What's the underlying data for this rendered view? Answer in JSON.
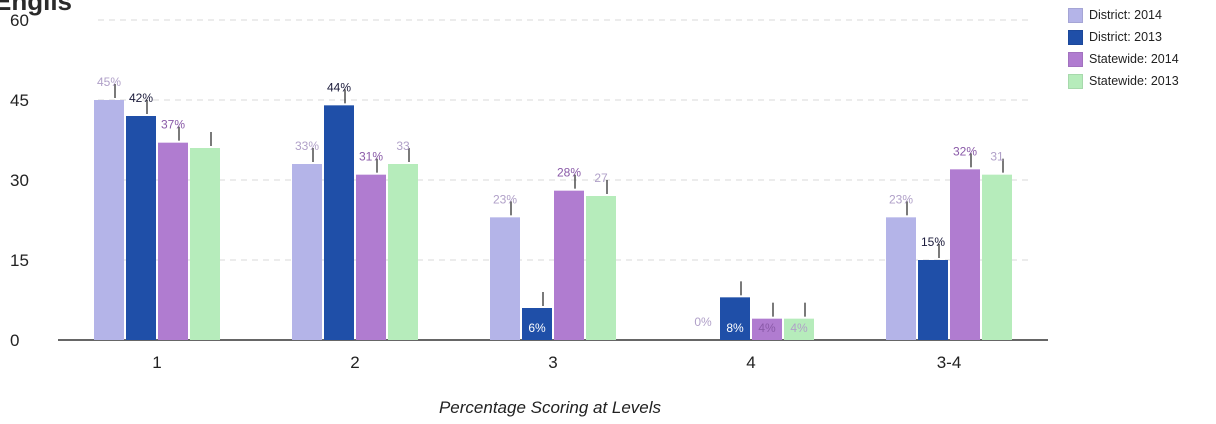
{
  "chart_data": {
    "type": "bar",
    "title": "Englis",
    "xlabel": "Percentage Scoring at Levels",
    "ylabel": "",
    "ylim": [
      0,
      60
    ],
    "yticks": [
      0,
      15,
      30,
      45,
      60
    ],
    "grid": true,
    "legend_position": "top-right",
    "categories": [
      "1",
      "2",
      "3",
      "4",
      "3-4"
    ],
    "series": [
      {
        "name": "District: 2014",
        "color": "#b4b4e8",
        "values": [
          45,
          33,
          23,
          0,
          23
        ],
        "labels": [
          "45%",
          "33%",
          "23%",
          "0%",
          "23%"
        ]
      },
      {
        "name": "District: 2013",
        "color": "#1f4fa8",
        "values": [
          42,
          44,
          6,
          8,
          15
        ],
        "labels": [
          "42%",
          "44%",
          "6%",
          "8%",
          "15%"
        ]
      },
      {
        "name": "Statewide: 2014",
        "color": "#b07cd0",
        "values": [
          37,
          31,
          28,
          4,
          32
        ],
        "labels": [
          "37%",
          "31%",
          "28%",
          "4%",
          "32%"
        ]
      },
      {
        "name": "Statewide: 2013",
        "color": "#b6ecbb",
        "values": [
          36,
          33,
          27,
          4,
          31
        ],
        "labels": [
          "",
          "33",
          "27",
          "4%",
          "31"
        ]
      }
    ]
  }
}
